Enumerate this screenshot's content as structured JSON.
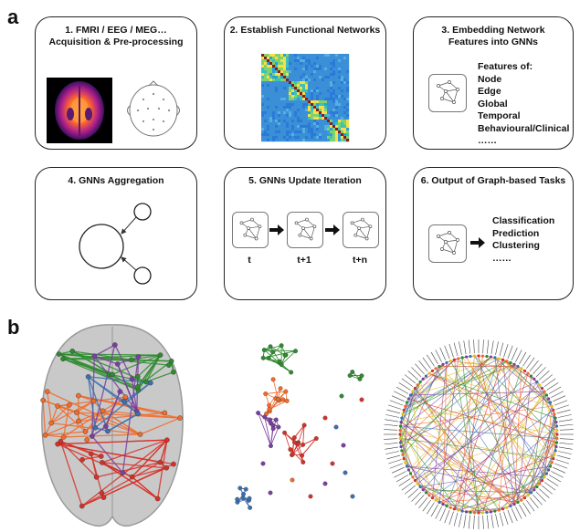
{
  "panels": {
    "a": "a",
    "b": "b"
  },
  "boxes": [
    {
      "id": "1",
      "title": "1. FMRI / EEG / MEG…\nAcquisition & Pre-processing"
    },
    {
      "id": "2",
      "title": "2. Establish Functional Networks"
    },
    {
      "id": "3",
      "title": "3. Embedding Network\nFeatures into GNNs"
    },
    {
      "id": "4",
      "title": "4. GNNs Aggregation"
    },
    {
      "id": "5",
      "title": "5. GNNs Update Iteration"
    },
    {
      "id": "6",
      "title": "6. Output of Graph-based Tasks"
    }
  ],
  "features": [
    "Features of:",
    "Node",
    "Edge",
    "Global",
    "Temporal",
    "Behavioural/Clinical",
    "……"
  ],
  "iteration_labels": [
    "t",
    "t+1",
    "t+n"
  ],
  "tasks": [
    "Classification",
    "Prediction",
    "Clustering",
    "……"
  ],
  "colors": {
    "network_red": "#d73027",
    "network_orange": "#f26b2a",
    "network_green": "#2e8b2e",
    "network_purple": "#7b3fa0",
    "network_blue": "#3a6fb0",
    "matrix_base": "#3b8fd6"
  },
  "icons": [
    "brain-scan-icon",
    "eeg-head-icon",
    "connectivity-matrix-icon",
    "graph-icon",
    "arrow-right-icon",
    "brain-network-icon",
    "node-cluster-icon",
    "chord-diagram-icon"
  ]
}
